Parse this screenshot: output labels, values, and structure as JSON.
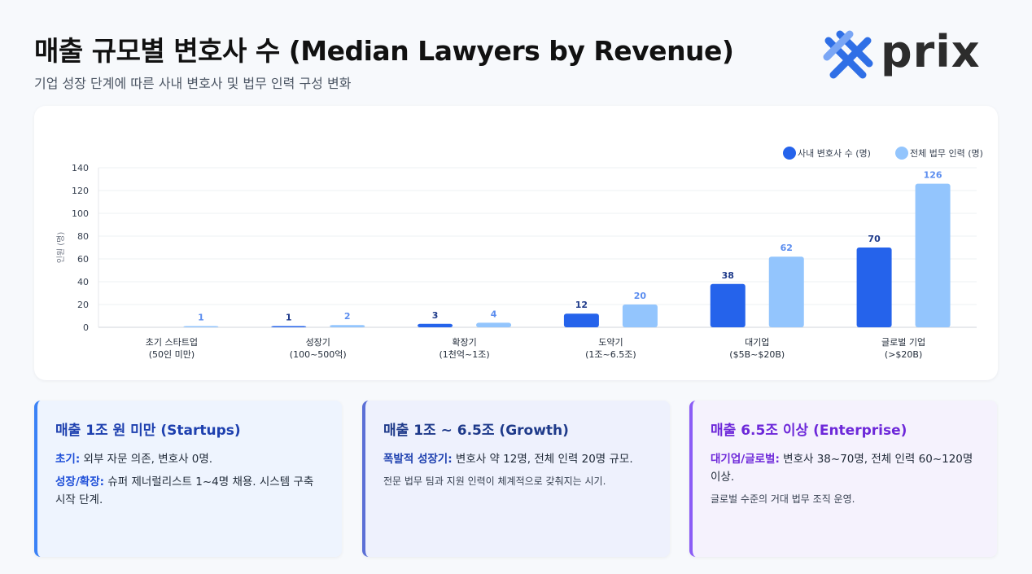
{
  "header": {
    "title": "매출 규모별 변호사 수 (Median Lawyers by Revenue)",
    "subtitle": "기업 성장 단계에 따른 사내 변호사 및 법무 인력 구성 변화"
  },
  "logo": {
    "text": "prix",
    "colors": [
      "#2f6fe6",
      "#7aa6f5"
    ]
  },
  "chart_data": {
    "type": "bar",
    "categories": [
      [
        "초기 스타트업",
        "(50인 미만)"
      ],
      [
        "성장기",
        "(100~500억)"
      ],
      [
        "확장기",
        "(1천억~1조)"
      ],
      [
        "도약기",
        "(1조~6.5조)"
      ],
      [
        "대기업",
        "($5B~$20B)"
      ],
      [
        "글로벌 기업",
        "(>$20B)"
      ]
    ],
    "series": [
      {
        "name": "사내 변호사 수 (명)",
        "values": [
          0,
          1,
          3,
          12,
          38,
          70
        ],
        "labels": [
          "",
          "1",
          "3",
          "12",
          "38",
          "70"
        ],
        "color": "#2563eb",
        "label_color": "#1e3a8a"
      },
      {
        "name": "전체 법무 인력 (명)",
        "values": [
          1,
          2,
          4,
          20,
          62,
          126
        ],
        "labels": [
          "1",
          "2",
          "4",
          "20",
          "62",
          "126"
        ],
        "color": "#93c5fd",
        "label_color": "#5b8def"
      }
    ],
    "ylabel": "인원 (명)",
    "ylim": [
      0,
      140
    ],
    "yticks": [
      0,
      20,
      40,
      60,
      80,
      100,
      120,
      140
    ],
    "grid": true,
    "legend": "top-right"
  },
  "cards": [
    {
      "title": "매출 1조 원 미만 (Startups)",
      "lines": [
        {
          "lead": "초기:",
          "text": " 외부 자문 의존, 변호사 0명."
        },
        {
          "lead": "성장/확장:",
          "text": " 슈퍼 제너럴리스트 1~4명 채용. 시스템 구축 시작 단계."
        }
      ],
      "note": ""
    },
    {
      "title": "매출 1조 ~ 6.5조 (Growth)",
      "lines": [
        {
          "lead": "폭발적 성장기:",
          "text": " 변호사 약 12명, 전체 인력 20명 규모."
        }
      ],
      "note": "전문 법무 팀과 지원 인력이 체계적으로 갖춰지는 시기."
    },
    {
      "title": "매출 6.5조 이상 (Enterprise)",
      "lines": [
        {
          "lead": "대기업/글로벌:",
          "text": " 변호사 38~70명, 전체 인력 60~120명 이상."
        }
      ],
      "note": "글로벌 수준의 거대 법무 조직 운영."
    }
  ]
}
